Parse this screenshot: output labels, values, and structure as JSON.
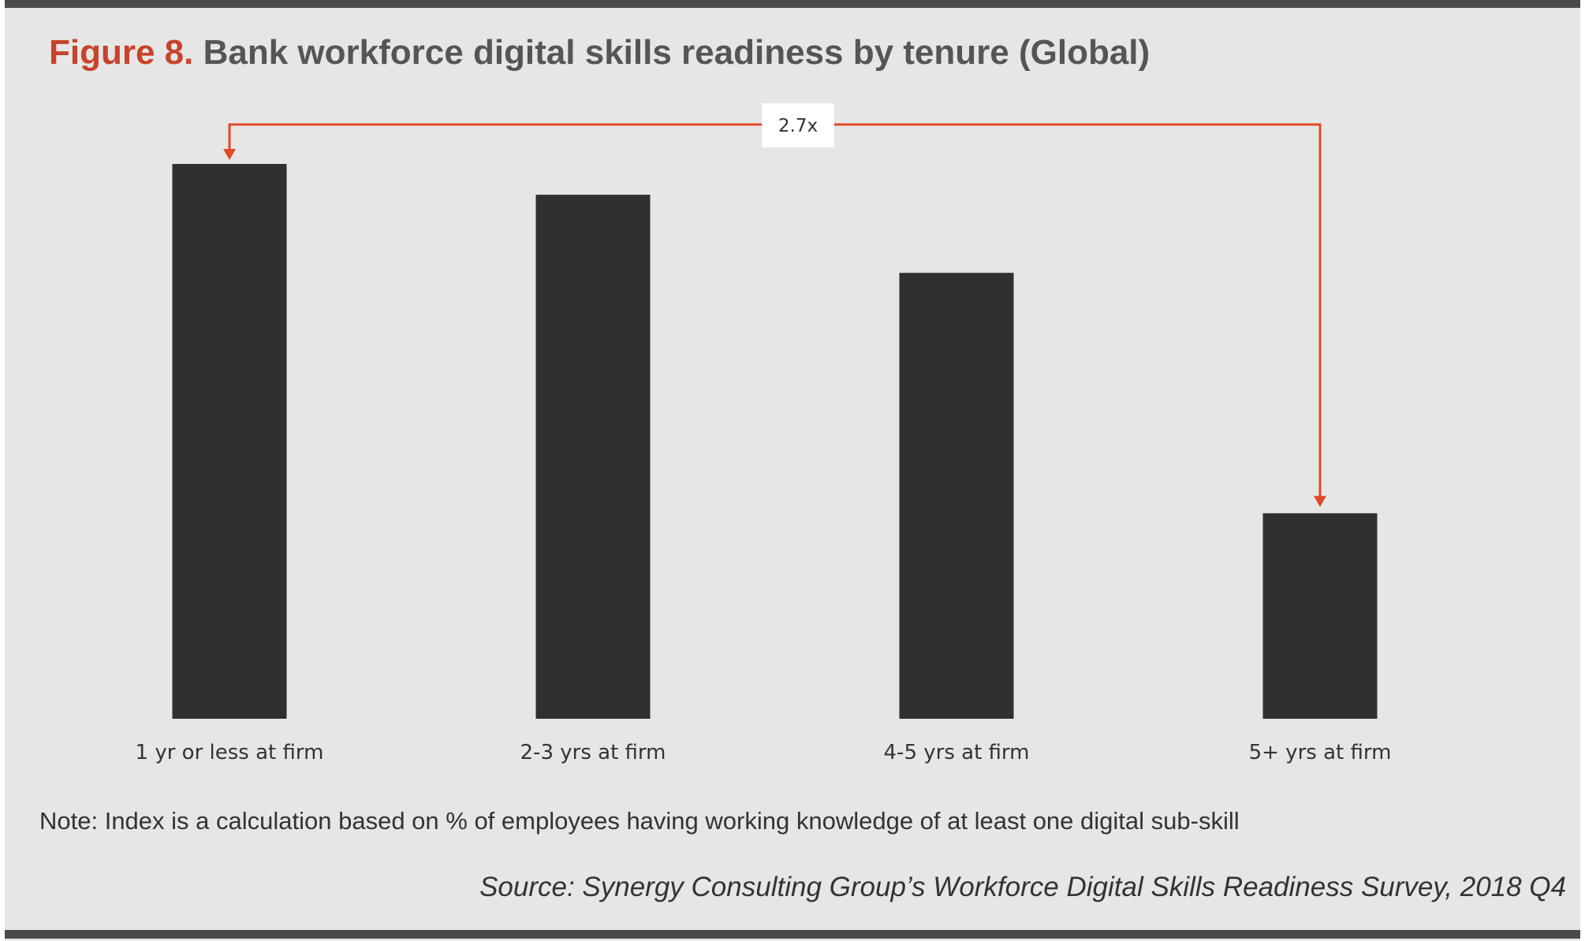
{
  "figure": {
    "prefix": "Figure 8.",
    "title": "Bank workforce digital skills readiness by tenure (Global)"
  },
  "note": "Note: Index is a calculation based on % of employees having working knowledge of at least one digital sub-skill",
  "source": "Source: Synergy Consulting Group’s Workforce Digital Skills Readiness Survey, 2018 Q4",
  "colors": {
    "bar": "#303030",
    "accent": "#e04a26",
    "title_prefix": "#c8432a",
    "background": "#e6e6e6"
  },
  "chart_data": {
    "type": "bar",
    "title": "Bank workforce digital skills readiness by tenure (Global)",
    "xlabel": "",
    "ylabel": "",
    "categories": [
      "1 yr or less at firm",
      "2-3 yrs at firm",
      "4-5 yrs at firm",
      "5+ yrs at firm"
    ],
    "values": [
      2.7,
      2.55,
      2.17,
      1.0
    ],
    "ylim": [
      0,
      2.7
    ],
    "grid": false,
    "legend": "none",
    "annotation": {
      "text": "2.7x",
      "from_category": "5+ yrs at firm",
      "to_category": "1 yr or less at firm"
    }
  }
}
